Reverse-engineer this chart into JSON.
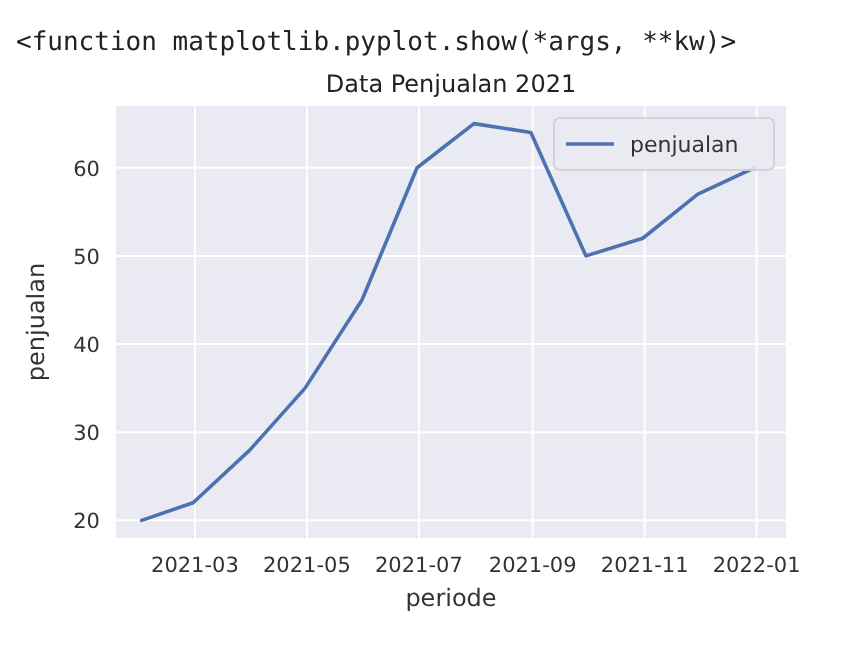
{
  "chart_data": {
    "type": "line",
    "title": "Data Penjualan 2021",
    "xlabel": "periode",
    "ylabel": "penjualan",
    "annotations": [
      "<function matplotlib.pyplot.show(*args, **kw)>"
    ],
    "x": [
      "2021-01-31",
      "2021-02-28",
      "2021-03-31",
      "2021-04-30",
      "2021-05-31",
      "2021-06-30",
      "2021-07-31",
      "2021-08-31",
      "2021-09-30",
      "2021-10-31",
      "2021-11-30",
      "2021-12-31"
    ],
    "series": [
      {
        "name": "penjualan",
        "color": "#4c72b0",
        "values": [
          20,
          22,
          28,
          35,
          45,
          60,
          65,
          64,
          50,
          52,
          57,
          60
        ]
      }
    ],
    "xlim": [
      "2021-01-17",
      "2022-01-17"
    ],
    "xticks": [
      {
        "value": "2021-03-01",
        "label": "2021-03"
      },
      {
        "value": "2021-05-01",
        "label": "2021-05"
      },
      {
        "value": "2021-07-01",
        "label": "2021-07"
      },
      {
        "value": "2021-09-01",
        "label": "2021-09"
      },
      {
        "value": "2021-11-01",
        "label": "2021-11"
      },
      {
        "value": "2022-01-01",
        "label": "2022-01"
      }
    ],
    "ylim": [
      18,
      67
    ],
    "yticks": [
      20,
      30,
      40,
      50,
      60
    ],
    "grid": true,
    "legend": "top right",
    "line_style": "solid",
    "marker": "none"
  }
}
